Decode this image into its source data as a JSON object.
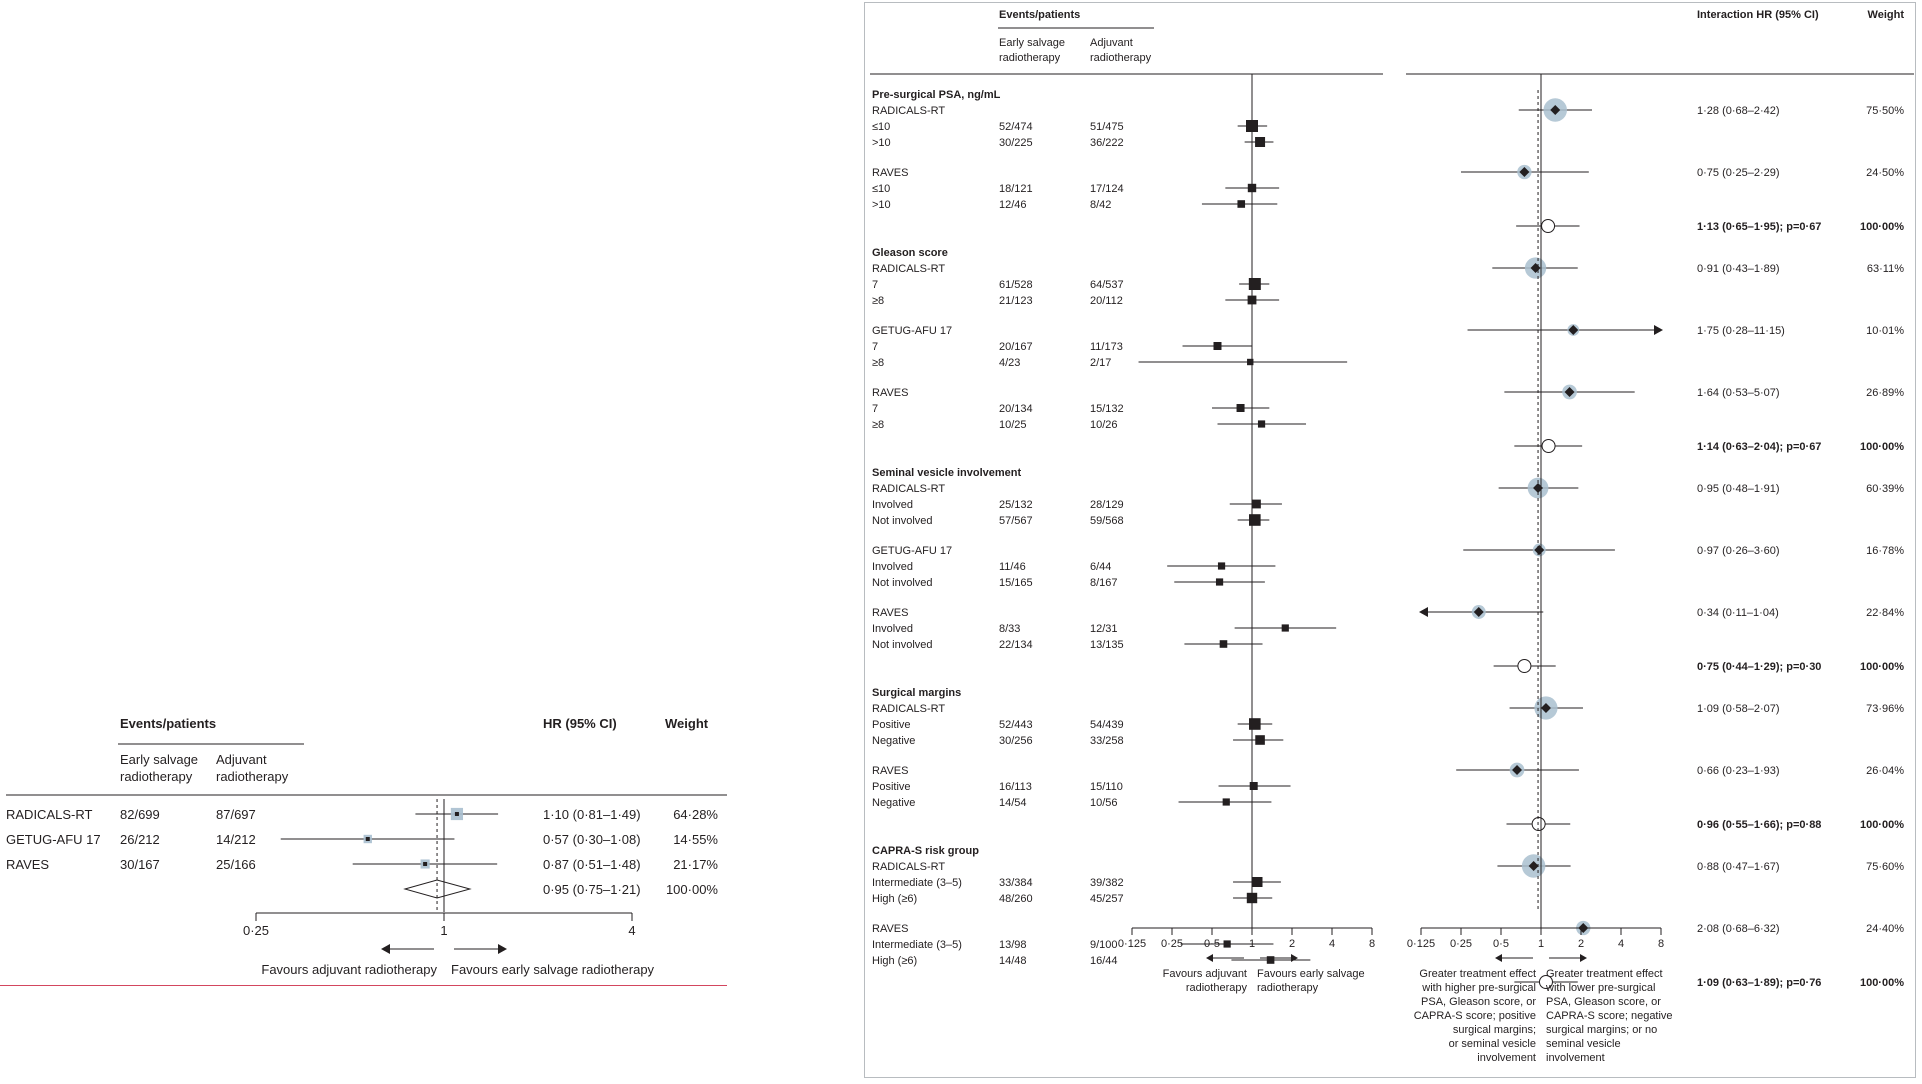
{
  "meta_page": {
    "width": 1922,
    "height": 1084
  },
  "chart_data": [
    {
      "type": "forest",
      "headers": {
        "events_patients": "Events/patients",
        "col_early": [
          "Early salvage",
          "radiotherapy"
        ],
        "col_adjuvant": [
          "Adjuvant",
          "radiotherapy"
        ],
        "hr": "HR (95% CI)",
        "weight": "Weight"
      },
      "scale": "log2",
      "axis_ticks": [
        {
          "value": 0.25,
          "label": "0·25"
        },
        {
          "value": 1,
          "label": "1"
        },
        {
          "value": 4,
          "label": "4"
        }
      ],
      "xlim": [
        0.25,
        4
      ],
      "favours_left": "Favours adjuvant radiotherapy",
      "favours_right": "Favours early salvage radiotherapy",
      "studies": [
        {
          "name": "RADICALS-RT",
          "early": "82/699",
          "adjuvant": "87/697",
          "hr": 1.1,
          "lo": 0.81,
          "hi": 1.49,
          "hr_text": "1·10 (0·81–1·49)",
          "weight": "64·28%"
        },
        {
          "name": "GETUG-AFU 17",
          "early": "26/212",
          "adjuvant": "14/212",
          "hr": 0.57,
          "lo": 0.3,
          "hi": 1.08,
          "hr_text": "0·57 (0·30–1·08)",
          "weight": "14·55%"
        },
        {
          "name": "RAVES",
          "early": "30/167",
          "adjuvant": "25/166",
          "hr": 0.87,
          "lo": 0.51,
          "hi": 1.48,
          "hr_text": "0·87 (0·51–1·48)",
          "weight": "21·17%"
        }
      ],
      "pooled": {
        "hr": 0.95,
        "lo": 0.75,
        "hi": 1.21,
        "hr_text": "0·95 (0·75–1·21)",
        "weight": "100·00%"
      }
    },
    {
      "type": "forest-interaction",
      "headers": {
        "events_patients": "Events/patients",
        "col_early": [
          "Early salvage",
          "radiotherapy"
        ],
        "col_adjuvant": [
          "Adjuvant",
          "radiotherapy"
        ],
        "interaction_hr": "Interaction HR (95% CI)",
        "weight": "Weight"
      },
      "scale": "log2",
      "axis_ticks": [
        {
          "value": 0.125,
          "label": "0·125"
        },
        {
          "value": 0.25,
          "label": "0·25"
        },
        {
          "value": 0.5,
          "label": "0·5"
        },
        {
          "value": 1,
          "label": "1"
        },
        {
          "value": 2,
          "label": "2"
        },
        {
          "value": 4,
          "label": "4"
        },
        {
          "value": 8,
          "label": "8"
        }
      ],
      "xlim": [
        0.125,
        8
      ],
      "left_favours_left": [
        "Favours adjuvant",
        "radiotherapy"
      ],
      "left_favours_right": [
        "Favours early salvage",
        "radiotherapy"
      ],
      "right_note_left": [
        "Greater treatment effect",
        "with higher pre-surgical",
        "PSA, Gleason score, or",
        "CAPRA-S score; positive",
        "surgical margins;",
        "or seminal vesicle",
        "involvement"
      ],
      "right_note_right": [
        "Greater treatment effect",
        "with lower pre-surgical",
        "PSA, Gleason score, or",
        "CAPRA-S score; negative",
        "surgical margins; or no",
        "seminal vesicle",
        "involvement"
      ],
      "pooled_ref": 0.95,
      "groups": [
        {
          "title": "Pre-surgical PSA, ng/mL",
          "trials": [
            {
              "name": "RADICALS-RT",
              "rows": [
                {
                  "label": "≤10",
                  "early": "52/474",
                  "adjuvant": "51/475",
                  "hr": 1.0,
                  "lo": 0.78,
                  "hi": 1.3,
                  "size": 1.0
                },
                {
                  "label": ">10",
                  "early": "30/225",
                  "adjuvant": "36/222",
                  "hr": 1.15,
                  "lo": 0.88,
                  "hi": 1.45,
                  "size": 0.75
                }
              ],
              "interaction": {
                "hr": 1.28,
                "lo": 0.68,
                "hi": 2.42,
                "text": "1·28 (0·68–2·42)",
                "weight": "75·50%",
                "halo": 1.0
              }
            },
            {
              "name": "RAVES",
              "rows": [
                {
                  "label": "≤10",
                  "early": "18/121",
                  "adjuvant": "17/124",
                  "hr": 1.0,
                  "lo": 0.63,
                  "hi": 1.6,
                  "size": 0.55
                },
                {
                  "label": ">10",
                  "early": "12/46",
                  "adjuvant": "8/42",
                  "hr": 0.83,
                  "lo": 0.42,
                  "hi": 1.55,
                  "size": 0.45
                }
              ],
              "interaction": {
                "hr": 0.75,
                "lo": 0.25,
                "hi": 2.29,
                "text": "0·75 (0·25–2·29)",
                "weight": "24·50%",
                "halo": 0.6
              }
            }
          ],
          "pooled": {
            "hr": 1.13,
            "lo": 0.65,
            "hi": 1.95,
            "text": "1·13 (0·65–1·95); p=0·67",
            "weight": "100·00%"
          }
        },
        {
          "title": "Gleason score",
          "trials": [
            {
              "name": "RADICALS-RT",
              "rows": [
                {
                  "label": "7",
                  "early": "61/528",
                  "adjuvant": "64/537",
                  "hr": 1.05,
                  "lo": 0.8,
                  "hi": 1.35,
                  "size": 1.0
                },
                {
                  "label": "≥8",
                  "early": "21/123",
                  "adjuvant": "20/112",
                  "hr": 1.0,
                  "lo": 0.63,
                  "hi": 1.6,
                  "size": 0.6
                }
              ],
              "interaction": {
                "hr": 0.91,
                "lo": 0.43,
                "hi": 1.89,
                "text": "0·91 (0·43–1·89)",
                "weight": "63·11%",
                "halo": 0.95
              }
            },
            {
              "name": "GETUG-AFU 17",
              "rows": [
                {
                  "label": "7",
                  "early": "20/167",
                  "adjuvant": "11/173",
                  "hr": 0.55,
                  "lo": 0.3,
                  "hi": 1.0,
                  "size": 0.5
                },
                {
                  "label": "≥8",
                  "early": "4/23",
                  "adjuvant": "2/17",
                  "hr": 0.97,
                  "lo": 0.14,
                  "hi": 5.2,
                  "size": 0.3
                }
              ],
              "interaction": {
                "hr": 1.75,
                "lo": 0.28,
                "hi": 11.15,
                "text": "1·75 (0·28–11·15)",
                "weight": "10·01%",
                "halo": 0.0,
                "arrow_right": true
              }
            },
            {
              "name": "RAVES",
              "rows": [
                {
                  "label": "7",
                  "early": "20/134",
                  "adjuvant": "15/132",
                  "hr": 0.82,
                  "lo": 0.5,
                  "hi": 1.35,
                  "size": 0.5
                },
                {
                  "label": "≥8",
                  "early": "10/25",
                  "adjuvant": "10/26",
                  "hr": 1.18,
                  "lo": 0.55,
                  "hi": 2.55,
                  "size": 0.4
                }
              ],
              "interaction": {
                "hr": 1.64,
                "lo": 0.53,
                "hi": 5.07,
                "text": "1·64 (0·53–5·07)",
                "weight": "26·89%",
                "halo": 0.55
              }
            }
          ],
          "pooled": {
            "hr": 1.14,
            "lo": 0.63,
            "hi": 2.04,
            "text": "1·14 (0·63–2·04); p=0·67",
            "weight": "100·00%"
          }
        },
        {
          "title": "Seminal vesicle involvement",
          "trials": [
            {
              "name": "RADICALS-RT",
              "rows": [
                {
                  "label": "Involved",
                  "early": "25/132",
                  "adjuvant": "28/129",
                  "hr": 1.08,
                  "lo": 0.68,
                  "hi": 1.68,
                  "size": 0.6
                },
                {
                  "label": "Not involved",
                  "early": "57/567",
                  "adjuvant": "59/568",
                  "hr": 1.05,
                  "lo": 0.78,
                  "hi": 1.35,
                  "size": 0.95
                }
              ],
              "interaction": {
                "hr": 0.95,
                "lo": 0.48,
                "hi": 1.91,
                "text": "0·95 (0·48–1·91)",
                "weight": "60·39%",
                "halo": 0.95
              }
            },
            {
              "name": "GETUG-AFU 17",
              "rows": [
                {
                  "label": "Involved",
                  "early": "11/46",
                  "adjuvant": "6/44",
                  "hr": 0.59,
                  "lo": 0.23,
                  "hi": 1.5,
                  "size": 0.4
                },
                {
                  "label": "Not involved",
                  "early": "15/165",
                  "adjuvant": "8/167",
                  "hr": 0.57,
                  "lo": 0.26,
                  "hi": 1.25,
                  "size": 0.4
                }
              ],
              "interaction": {
                "hr": 0.97,
                "lo": 0.26,
                "hi": 3.6,
                "text": "0·97 (0·26–3·60)",
                "weight": "16·78%",
                "halo": 0.45
              }
            },
            {
              "name": "RAVES",
              "rows": [
                {
                  "label": "Involved",
                  "early": "8/33",
                  "adjuvant": "12/31",
                  "hr": 1.78,
                  "lo": 0.74,
                  "hi": 4.3,
                  "size": 0.4
                },
                {
                  "label": "Not involved",
                  "early": "22/134",
                  "adjuvant": "13/135",
                  "hr": 0.61,
                  "lo": 0.31,
                  "hi": 1.2,
                  "size": 0.45
                }
              ],
              "interaction": {
                "hr": 0.34,
                "lo": 0.11,
                "hi": 1.04,
                "text": "0·34 (0·11–1·04)",
                "weight": "22·84%",
                "halo": 0.5,
                "arrow_left": true
              }
            }
          ],
          "pooled": {
            "hr": 0.75,
            "lo": 0.44,
            "hi": 1.29,
            "text": "0·75 (0·44–1·29); p=0·30",
            "weight": "100·00%"
          }
        },
        {
          "title": "Surgical margins",
          "trials": [
            {
              "name": "RADICALS-RT",
              "rows": [
                {
                  "label": "Positive",
                  "early": "52/443",
                  "adjuvant": "54/439",
                  "hr": 1.05,
                  "lo": 0.78,
                  "hi": 1.42,
                  "size": 0.95
                },
                {
                  "label": "Negative",
                  "early": "30/256",
                  "adjuvant": "33/258",
                  "hr": 1.15,
                  "lo": 0.72,
                  "hi": 1.72,
                  "size": 0.7
                }
              ],
              "interaction": {
                "hr": 1.09,
                "lo": 0.58,
                "hi": 2.07,
                "text": "1·09 (0·58–2·07)",
                "weight": "73·96%",
                "halo": 1.0
              }
            },
            {
              "name": "RAVES",
              "rows": [
                {
                  "label": "Positive",
                  "early": "16/113",
                  "adjuvant": "15/110",
                  "hr": 1.03,
                  "lo": 0.56,
                  "hi": 1.95,
                  "size": 0.5
                },
                {
                  "label": "Negative",
                  "early": "14/54",
                  "adjuvant": "10/56",
                  "hr": 0.64,
                  "lo": 0.28,
                  "hi": 1.4,
                  "size": 0.4
                }
              ],
              "interaction": {
                "hr": 0.66,
                "lo": 0.23,
                "hi": 1.93,
                "text": "0·66 (0·23–1·93)",
                "weight": "26·04%",
                "halo": 0.55
              }
            }
          ],
          "pooled": {
            "hr": 0.96,
            "lo": 0.55,
            "hi": 1.66,
            "text": "0·96 (0·55–1·66); p=0·88",
            "weight": "100·00%"
          }
        },
        {
          "title": "CAPRA-S risk group",
          "trials": [
            {
              "name": "RADICALS-RT",
              "rows": [
                {
                  "label": "Intermediate (3–5)",
                  "early": "33/384",
                  "adjuvant": "39/382",
                  "hr": 1.1,
                  "lo": 0.72,
                  "hi": 1.65,
                  "size": 0.75
                },
                {
                  "label": "High (≥6)",
                  "early": "48/260",
                  "adjuvant": "45/257",
                  "hr": 1.0,
                  "lo": 0.72,
                  "hi": 1.42,
                  "size": 0.8
                }
              ],
              "interaction": {
                "hr": 0.88,
                "lo": 0.47,
                "hi": 1.67,
                "text": "0·88 (0·47–1·67)",
                "weight": "75·60%",
                "halo": 1.0
              }
            },
            {
              "name": "RAVES",
              "rows": [
                {
                  "label": "Intermediate (3–5)",
                  "early": "13/98",
                  "adjuvant": "9/100",
                  "hr": 0.65,
                  "lo": 0.29,
                  "hi": 1.45,
                  "size": 0.4
                },
                {
                  "label": "High (≥6)",
                  "early": "14/48",
                  "adjuvant": "16/44",
                  "hr": 1.38,
                  "lo": 0.7,
                  "hi": 2.75,
                  "size": 0.45
                }
              ],
              "interaction": {
                "hr": 2.08,
                "lo": 0.68,
                "hi": 6.32,
                "text": "2·08 (0·68–6·32)",
                "weight": "24·40%",
                "halo": 0.55
              }
            }
          ],
          "pooled": {
            "hr": 1.09,
            "lo": 0.63,
            "hi": 1.89,
            "text": "1·09 (0·63–1·89); p=0·76",
            "weight": "100·00%"
          }
        }
      ]
    }
  ]
}
